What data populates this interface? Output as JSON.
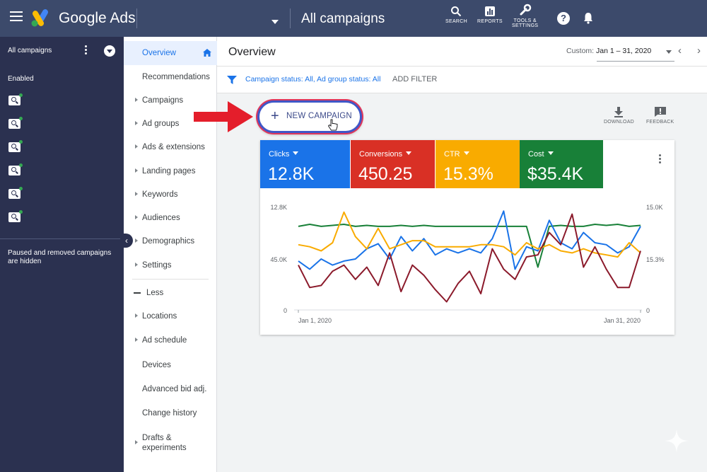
{
  "topbar": {
    "brand": "Google Ads",
    "page_title": "All campaigns",
    "tools": [
      {
        "icon": "search-icon",
        "label": "SEARCH"
      },
      {
        "icon": "reports-icon",
        "label": "REPORTS"
      },
      {
        "icon": "wrench-icon",
        "label_line1": "TOOLS &",
        "label_line2": "SETTINGS"
      }
    ],
    "help_glyph": "?"
  },
  "sidebar": {
    "account_label": "All campaigns",
    "enabled_label": "Enabled",
    "campaign_count": 6,
    "paused_note": "Paused and removed campaigns are hidden"
  },
  "nav": {
    "items": [
      {
        "label": "Overview",
        "active": true
      },
      {
        "label": "Recommendations"
      },
      {
        "label": "Campaigns",
        "arrow": true
      },
      {
        "label": "Ad groups",
        "arrow": true
      },
      {
        "label": "Ads & extensions",
        "arrow": true
      },
      {
        "label": "Landing pages",
        "arrow": true
      },
      {
        "label": "Keywords",
        "arrow": true
      },
      {
        "label": "Audiences",
        "arrow": true
      },
      {
        "label": "Demographics",
        "arrow": true
      },
      {
        "label": "Settings",
        "arrow": true
      },
      {
        "label": "Less"
      },
      {
        "label": "Locations",
        "arrow": true
      },
      {
        "label": "Ad schedule",
        "arrow": true
      },
      {
        "label": "Devices"
      },
      {
        "label": "Advanced bid adj."
      },
      {
        "label": "Change history"
      },
      {
        "label": "Drafts & experiments",
        "arrow": true
      }
    ]
  },
  "header": {
    "title": "Overview",
    "date_prefix": "Custom:",
    "date_range": "Jan 1 – 31, 2020"
  },
  "filter": {
    "text_prefix": "Campaign status:",
    "status_value": "All",
    "text_mid": ", Ad group status:",
    "adgroup_value": "All",
    "add_filter": "ADD FILTER"
  },
  "actions": {
    "new_campaign": "NEW CAMPAIGN",
    "download": "DOWNLOAD",
    "feedback": "FEEDBACK"
  },
  "metrics": [
    {
      "label": "Clicks",
      "value": "12.8K",
      "color": "#1a73e8"
    },
    {
      "label": "Conversions",
      "value": "450.25",
      "color": "#d93025"
    },
    {
      "label": "CTR",
      "value": "15.3%",
      "color": "#f9ab00"
    },
    {
      "label": "Cost",
      "value": "$35.4K",
      "color": "#188038"
    }
  ],
  "chart_data": {
    "type": "line",
    "x_start_label": "Jan 1, 2020",
    "x_end_label": "Jan 31, 2020",
    "left_axis_ticks": [
      "12.8K",
      "45.0K",
      "0"
    ],
    "right_axis_ticks": [
      "15.0K",
      "15.3%",
      "0"
    ],
    "grid": false,
    "series": [
      {
        "color": "#188038",
        "values": [
          0.82,
          0.84,
          0.82,
          0.83,
          0.84,
          0.82,
          0.83,
          0.82,
          0.82,
          0.83,
          0.82,
          0.83,
          0.82,
          0.82,
          0.82,
          0.82,
          0.82,
          0.82,
          0.82,
          0.82,
          0.82,
          0.42,
          0.82,
          0.83,
          0.82,
          0.82,
          0.84,
          0.83,
          0.84,
          0.82,
          0.83
        ]
      },
      {
        "color": "#1a73e8",
        "values": [
          0.48,
          0.4,
          0.5,
          0.44,
          0.48,
          0.5,
          0.6,
          0.65,
          0.5,
          0.72,
          0.58,
          0.7,
          0.54,
          0.6,
          0.56,
          0.6,
          0.56,
          0.7,
          0.97,
          0.4,
          0.62,
          0.58,
          0.88,
          0.66,
          0.6,
          0.76,
          0.66,
          0.64,
          0.56,
          0.62,
          0.82
        ]
      },
      {
        "color": "#f9ab00",
        "values": [
          0.64,
          0.62,
          0.58,
          0.66,
          0.96,
          0.72,
          0.6,
          0.8,
          0.6,
          0.64,
          0.68,
          0.68,
          0.62,
          0.62,
          0.62,
          0.62,
          0.64,
          0.64,
          0.62,
          0.54,
          0.66,
          0.6,
          0.64,
          0.58,
          0.56,
          0.6,
          0.56,
          0.54,
          0.52,
          0.66,
          0.56
        ]
      },
      {
        "color": "#8b1a2b",
        "values": [
          0.44,
          0.22,
          0.24,
          0.38,
          0.44,
          0.3,
          0.42,
          0.24,
          0.56,
          0.18,
          0.44,
          0.34,
          0.2,
          0.08,
          0.26,
          0.38,
          0.16,
          0.6,
          0.4,
          0.3,
          0.52,
          0.54,
          0.76,
          0.64,
          0.94,
          0.42,
          0.62,
          0.4,
          0.22,
          0.22,
          0.58
        ]
      }
    ]
  }
}
